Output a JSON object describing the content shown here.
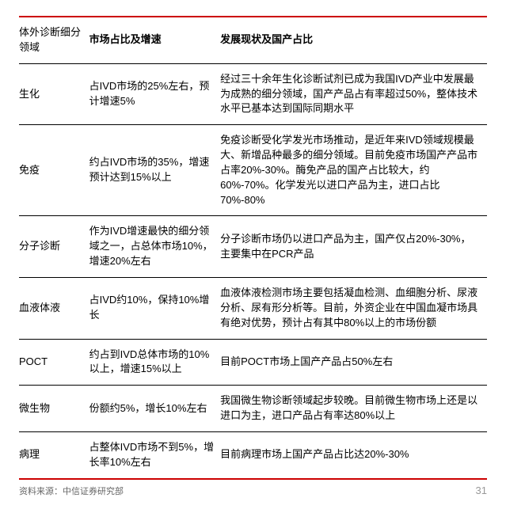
{
  "accent_color": "#cc0000",
  "header": {
    "col1": "体外诊断细分领域",
    "col2": "市场占比及增速",
    "col3": "发展现状及国产占比"
  },
  "rows": [
    {
      "name": "生化",
      "share": "占IVD市场的25%左右，预计增速5%",
      "status": "经过三十余年生化诊断试剂已成为我国IVD产业中发展最为成熟的细分领域，国产产品占有率超过50%，整体技术水平已基本达到国际同期水平"
    },
    {
      "name": "免疫",
      "share": "约占IVD市场的35%，增速预计达到15%以上",
      "status": "免疫诊断受化学发光市场推动，是近年来IVD领域规模最大、新增品种最多的细分领域。目前免疫市场国产产品市占率20%-30%。酶免产品的国产占比较大，约60%-70%。化学发光以进口产品为主，进口占比70%-80%"
    },
    {
      "name": "分子诊断",
      "share": "作为IVD增速最快的细分领域之一，占总体市场10%，增速20%左右",
      "status": "分子诊断市场仍以进口产品为主，国产仅占20%-30%，主要集中在PCR产品"
    },
    {
      "name": "血液体液",
      "share": "占IVD约10%，保持10%增长",
      "status": "血液体液检测市场主要包括凝血检测、血细胞分析、尿液分析、尿有形分析等。目前，外资企业在中国血凝市场具有绝对优势，预计占有其中80%以上的市场份额"
    },
    {
      "name": "POCT",
      "share": "约占到IVD总体市场的10%以上，增速15%以上",
      "status": "目前POCT市场上国产产品占50%左右"
    },
    {
      "name": "微生物",
      "share": "份额约5%，增长10%左右",
      "status": "我国微生物诊断领域起步较晚。目前微生物市场上还是以进口为主，进口产品占有率达80%以上"
    },
    {
      "name": "病理",
      "share": "占整体IVD市场不到5%，增长率10%左右",
      "status": "目前病理市场上国产产品占比达20%-30%"
    }
  ],
  "source_label": "资料来源：中信证券研究部",
  "page_number": "31"
}
